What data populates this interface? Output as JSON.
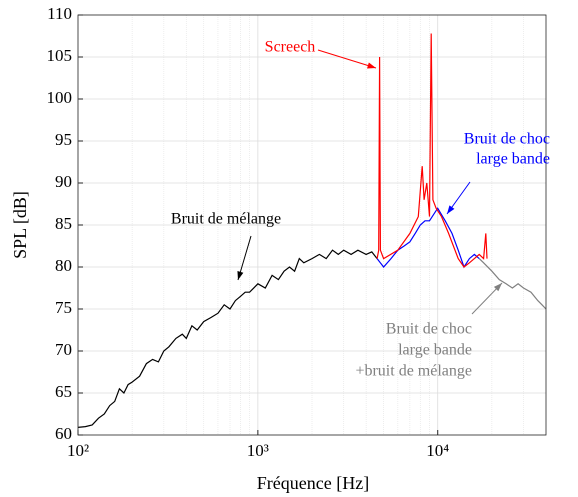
{
  "chart_data": {
    "type": "line",
    "xlabel": "Fréquence [Hz]",
    "ylabel": "SPL [dB]",
    "xscale": "log",
    "grid": true,
    "xlim": [
      100,
      40000
    ],
    "ylim": [
      60,
      110
    ],
    "xticks": [
      {
        "value": 100,
        "label": "10²"
      },
      {
        "value": 1000,
        "label": "10³"
      },
      {
        "value": 10000,
        "label": "10⁴"
      }
    ],
    "xminorticks": [
      200,
      300,
      400,
      500,
      600,
      700,
      800,
      900,
      2000,
      3000,
      4000,
      5000,
      6000,
      7000,
      8000,
      9000,
      20000,
      30000
    ],
    "yticks": [
      60,
      65,
      70,
      75,
      80,
      85,
      90,
      95,
      100,
      105,
      110
    ],
    "series": [
      {
        "color": "#000000",
        "x": [
          100,
          110,
          120,
          130,
          140,
          150,
          160,
          170,
          180,
          190,
          200,
          220,
          240,
          260,
          280,
          300,
          320,
          350,
          380,
          400,
          430,
          460,
          500,
          550,
          600,
          650,
          700,
          750,
          800,
          850,
          900,
          1000,
          1100,
          1200,
          1300,
          1400,
          1500,
          1600,
          1700,
          1800,
          2000,
          2200,
          2400,
          2600,
          2800,
          3000,
          3300,
          3600,
          4000,
          4300,
          4600
        ],
        "values": [
          60.9,
          61,
          61.2,
          62,
          62.5,
          63.5,
          64,
          65.5,
          65,
          66,
          66.3,
          67,
          68.5,
          69,
          68.7,
          70,
          70.5,
          71.5,
          72,
          71.5,
          73,
          72.5,
          73.5,
          74,
          74.5,
          75.5,
          75,
          76,
          76.5,
          77,
          77,
          78,
          77.5,
          79,
          78.5,
          79.5,
          80,
          79.5,
          81,
          80.5,
          81,
          81.5,
          81,
          82,
          81.5,
          82,
          81.5,
          82,
          81.5,
          81.8,
          81
        ]
      },
      {
        "color": "#ff0000",
        "x": [
          4600,
          4700,
          4750,
          4800,
          5000,
          6000,
          7000,
          7800,
          8200,
          8400,
          8700,
          9000,
          9200,
          9400,
          9800,
          10500,
          11500,
          13000,
          14000,
          15000,
          16000,
          17000,
          18000,
          18500,
          18800
        ],
        "values": [
          81,
          82,
          105,
          82,
          81,
          82,
          84,
          86,
          92,
          88,
          90,
          86,
          107.8,
          88,
          87,
          86,
          84,
          81,
          80,
          80.5,
          81,
          81.5,
          81,
          84,
          81
        ]
      },
      {
        "color": "#0000ff",
        "x": [
          4600,
          5000,
          5500,
          6000,
          6500,
          7000,
          7500,
          8000,
          8500,
          9000,
          10000,
          11000,
          12000,
          13000,
          14000,
          15000,
          16000,
          17000
        ],
        "values": [
          81,
          80,
          81,
          82,
          82.5,
          83,
          84,
          85,
          85.5,
          85.5,
          87,
          85.5,
          84,
          82,
          80,
          81,
          81.5,
          81
        ]
      },
      {
        "color": "#808080",
        "x": [
          17000,
          18000,
          20000,
          22000,
          24000,
          26000,
          28000,
          30000,
          33000,
          36000,
          38000,
          40000
        ],
        "values": [
          81,
          80.5,
          79.5,
          78.5,
          78,
          77.5,
          78,
          77.5,
          77,
          76,
          75.5,
          75
        ]
      }
    ],
    "annotations": [
      {
        "text": [
          "Screech"
        ],
        "color": "#ff0000"
      },
      {
        "text": [
          "Bruit de choc",
          "large bande"
        ],
        "color": "#0000ff"
      },
      {
        "text": [
          "Bruit de mélange"
        ],
        "color": "#000000"
      },
      {
        "text": [
          "Bruit de choc",
          "large bande",
          "+bruit de mélange"
        ],
        "color": "#808080"
      }
    ]
  }
}
